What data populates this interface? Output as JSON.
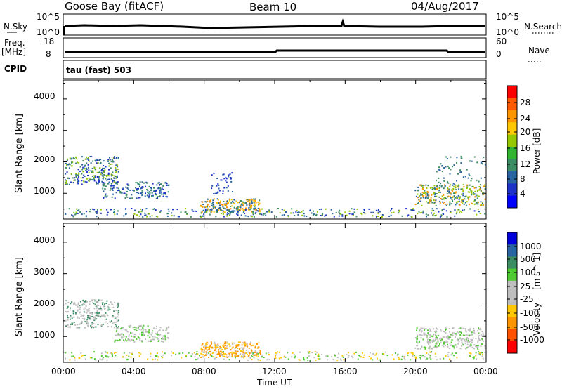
{
  "header": {
    "title": "Goose Bay (fitACF)",
    "beam": "Beam 10",
    "date": "04/Aug/2017"
  },
  "top_panels": {
    "nsky_label": "N.Sky",
    "nsky_ticks": [
      "10^5",
      "10^0"
    ],
    "nsearch_label": "N.Search",
    "nsearch_ticks": [
      "10^5",
      "10^0"
    ],
    "freq_label": "Freq.",
    "freq_unit": "[MHz]",
    "freq_ticks": [
      "18",
      "8"
    ],
    "nave_label": "Nave",
    "nave_ticks": [
      "60",
      "0"
    ],
    "cpid_label": "CPID",
    "cpid_text": "tau (fast) 503"
  },
  "chart_data": [
    {
      "type": "heatmap",
      "name": "power",
      "ylabel": "Slant Range [km]",
      "yticks": [
        "4000",
        "3000",
        "2000",
        "1000"
      ],
      "ylim": [
        180,
        4600
      ],
      "colorbar_label": "Power [dB]",
      "colorbar_ticks": [
        "28",
        "24",
        "20",
        "16",
        "12",
        "8",
        "4"
      ],
      "colorbar_colors": [
        "#ff0000",
        "#ff5a00",
        "#ff9600",
        "#ffc800",
        "#96c800",
        "#32b432",
        "#3c8c64",
        "#2864a0",
        "#1e32c8",
        "#0000ff"
      ]
    },
    {
      "type": "heatmap",
      "name": "velocity",
      "ylabel": "Slant Range [km]",
      "yticks": [
        "4000",
        "3000",
        "2000",
        "1000"
      ],
      "ylim": [
        180,
        4600
      ],
      "colorbar_label": "Velocity",
      "colorbar_unit": "[m s^-1]",
      "colorbar_ticks": [
        "1000",
        "500",
        "100",
        "25",
        "-25",
        "-100",
        "-500",
        "-1000"
      ],
      "colorbar_colors": [
        "#0000dc",
        "#2864a0",
        "#3c8c64",
        "#50c832",
        "#bebebe",
        "#bebebe",
        "#ffc800",
        "#ff9600",
        "#ff5000",
        "#ff0000"
      ]
    }
  ],
  "x_axis": {
    "ticks": [
      "00:00",
      "04:00",
      "08:00",
      "12:00",
      "16:00",
      "20:00",
      "00:00"
    ],
    "label": "Time UT"
  }
}
